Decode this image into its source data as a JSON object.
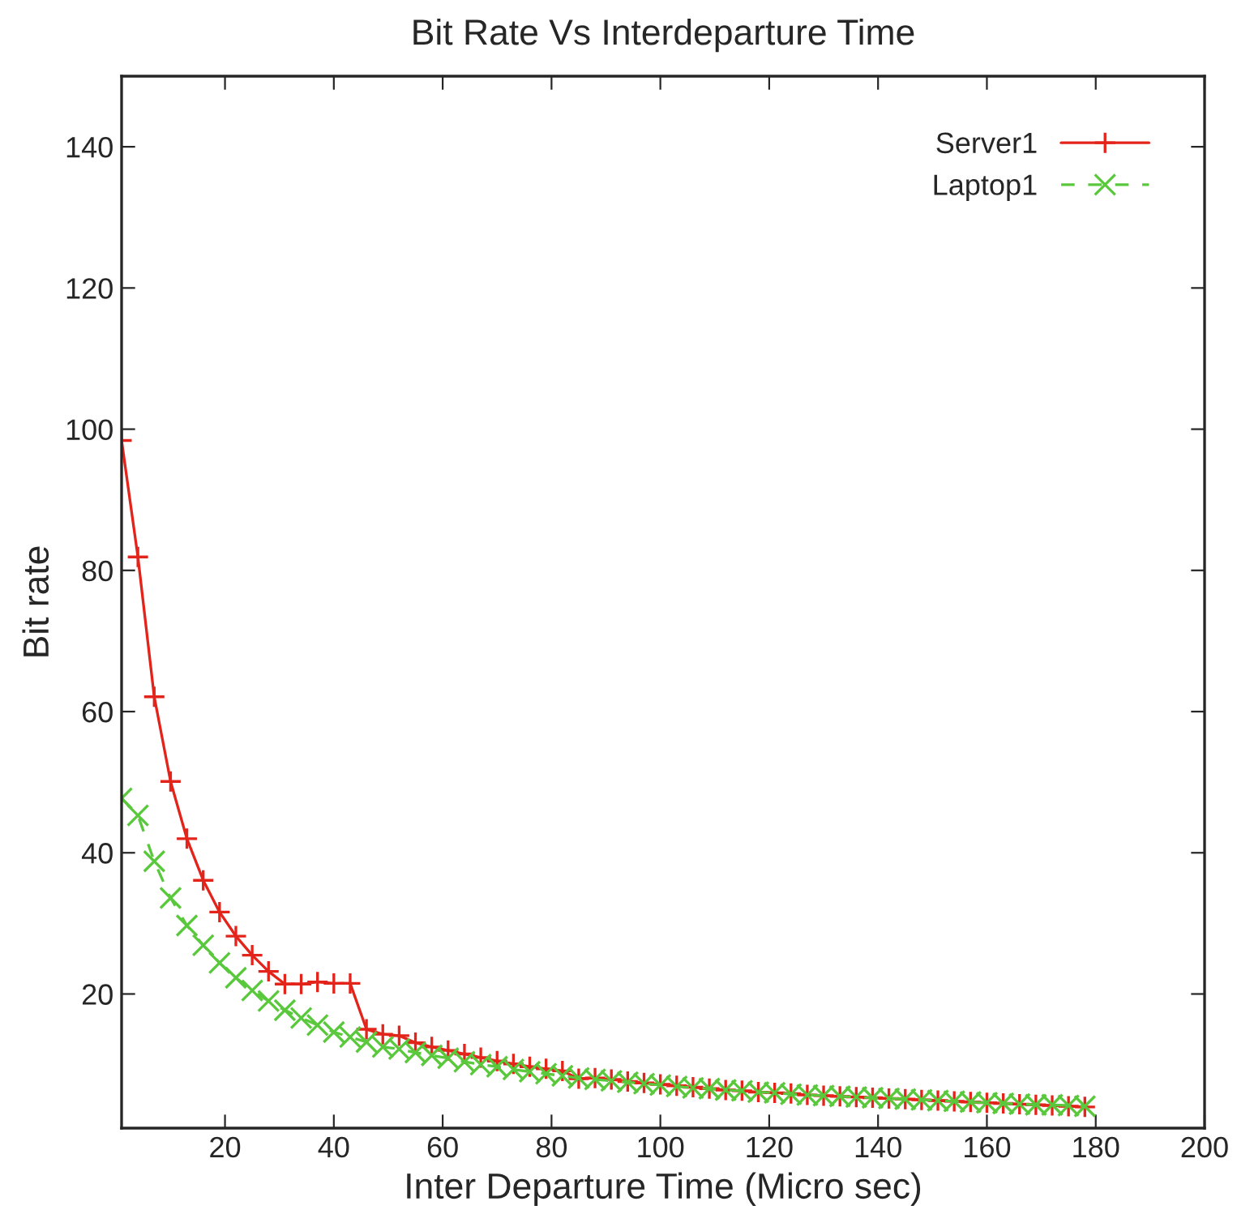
{
  "chart_data": {
    "type": "line",
    "title": "Bit Rate Vs Interdeparture Time",
    "xlabel": "Inter Departure Time (Micro sec)",
    "ylabel": "Bit rate",
    "x": [
      1,
      4,
      7,
      10,
      13,
      16,
      19,
      22,
      25,
      28,
      31,
      34,
      37,
      40,
      43,
      46,
      49,
      52,
      55,
      58,
      61,
      64,
      67,
      70,
      73,
      76,
      79,
      82,
      85,
      88,
      91,
      94,
      97,
      100,
      103,
      106,
      109,
      112,
      115,
      118,
      121,
      124,
      127,
      130,
      133,
      136,
      139,
      142,
      145,
      148,
      151,
      154,
      157,
      160,
      163,
      166,
      169,
      172,
      175,
      178
    ],
    "series": [
      {
        "name": "Server1",
        "color": "#e3241b",
        "marker": "cross",
        "line_style": "solid",
        "values": [
          98.4,
          81.9,
          62.1,
          50.1,
          42.0,
          36.1,
          31.6,
          28.2,
          25.5,
          23.2,
          21.4,
          21.4,
          21.7,
          21.5,
          21.5,
          15.0,
          14.3,
          14.1,
          13.1,
          12.5,
          12.0,
          11.5,
          11.0,
          10.5,
          10.1,
          9.7,
          9.4,
          9.1,
          8.0,
          8.1,
          7.9,
          7.6,
          7.4,
          7.2,
          7.0,
          6.8,
          6.6,
          6.4,
          6.3,
          6.1,
          6.0,
          5.9,
          5.7,
          5.6,
          5.5,
          5.4,
          5.3,
          5.2,
          5.1,
          5.0,
          4.9,
          4.8,
          4.7,
          4.6,
          4.5,
          4.4,
          4.3,
          4.2,
          4.1,
          4.0
        ]
      },
      {
        "name": "Laptop1",
        "color": "#5ac83c",
        "marker": "cross",
        "line_style": "dashed",
        "values": [
          47.7,
          45.3,
          38.8,
          33.6,
          29.7,
          26.9,
          24.4,
          22.3,
          20.5,
          19.0,
          17.7,
          16.6,
          15.6,
          14.6,
          13.9,
          13.2,
          12.5,
          12.2,
          11.7,
          11.3,
          10.9,
          10.4,
          10.0,
          9.7,
          9.3,
          9.0,
          8.7,
          8.4,
          8.1,
          7.9,
          7.7,
          7.5,
          7.3,
          7.1,
          6.9,
          6.7,
          6.6,
          6.4,
          6.3,
          6.1,
          6.0,
          5.8,
          5.7,
          5.6,
          5.5,
          5.4,
          5.3,
          5.2,
          5.1,
          5.0,
          4.9,
          4.8,
          4.7,
          4.6,
          4.5,
          4.4,
          4.3,
          4.3,
          4.2,
          4.1
        ]
      }
    ],
    "xlim": [
      1,
      200
    ],
    "xticks": [
      20,
      40,
      60,
      80,
      100,
      120,
      140,
      160,
      180,
      200
    ],
    "ylim": [
      1,
      150
    ],
    "yticks": [
      20,
      40,
      60,
      80,
      100,
      120,
      140
    ],
    "grid": false,
    "legend": "top right"
  }
}
